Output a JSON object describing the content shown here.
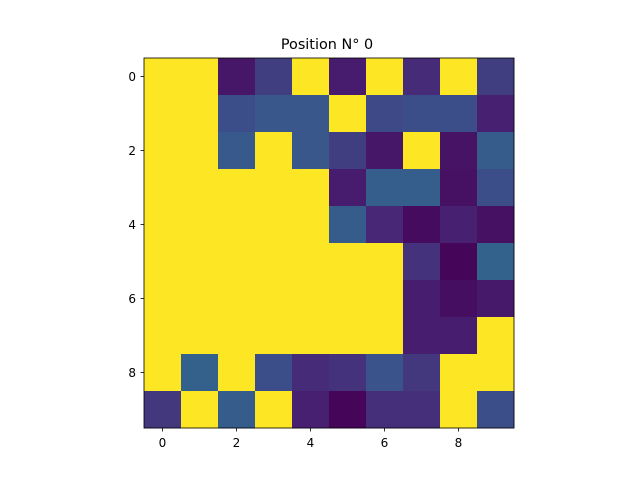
{
  "chart_data": {
    "type": "heatmap",
    "title": "Position N° 0",
    "xlabel": "",
    "ylabel": "",
    "x_ticks": [
      0,
      2,
      4,
      6,
      8
    ],
    "y_ticks": [
      0,
      2,
      4,
      6,
      8
    ],
    "xlim": [
      -0.5,
      9.5
    ],
    "ylim": [
      9.5,
      -0.5
    ],
    "grid": false,
    "rows": 10,
    "cols": 10,
    "colormap": "viridis",
    "vmin": 0,
    "vmax": 1,
    "values": [
      [
        1.0,
        1.0,
        0.08,
        0.2,
        1.0,
        0.1,
        1.0,
        0.15,
        1.0,
        0.2
      ],
      [
        1.0,
        1.0,
        0.24,
        0.27,
        0.27,
        1.0,
        0.23,
        0.24,
        0.24,
        0.12
      ],
      [
        1.0,
        1.0,
        0.28,
        1.0,
        0.27,
        0.2,
        0.08,
        1.0,
        0.07,
        0.29
      ],
      [
        1.0,
        1.0,
        1.0,
        1.0,
        1.0,
        0.1,
        0.3,
        0.3,
        0.06,
        0.24
      ],
      [
        1.0,
        1.0,
        1.0,
        1.0,
        1.0,
        0.29,
        0.14,
        0.04,
        0.12,
        0.06
      ],
      [
        1.0,
        1.0,
        1.0,
        1.0,
        1.0,
        1.0,
        1.0,
        0.17,
        0.02,
        0.32
      ],
      [
        1.0,
        1.0,
        1.0,
        1.0,
        1.0,
        1.0,
        1.0,
        0.11,
        0.05,
        0.09
      ],
      [
        1.0,
        1.0,
        1.0,
        1.0,
        1.0,
        1.0,
        1.0,
        0.11,
        0.11,
        1.0
      ],
      [
        1.0,
        0.31,
        1.0,
        0.24,
        0.15,
        0.17,
        0.26,
        0.18,
        1.0,
        1.0
      ],
      [
        0.18,
        1.0,
        0.29,
        1.0,
        0.12,
        0.02,
        0.16,
        0.16,
        1.0,
        0.24
      ]
    ]
  }
}
